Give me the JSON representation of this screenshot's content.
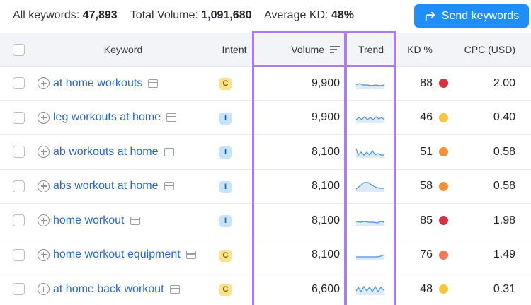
{
  "summary": {
    "all_keywords_label": "All keywords:",
    "all_keywords_value": "47,893",
    "total_volume_label": "Total Volume:",
    "total_volume_value": "1,091,680",
    "avg_kd_label": "Average KD:",
    "avg_kd_value": "48%"
  },
  "send_button": {
    "label": "Send keywords",
    "icon": "share-arrow-icon",
    "color": "#1f8efa"
  },
  "columns": {
    "keyword": "Keyword",
    "intent": "Intent",
    "volume": "Volume",
    "trend": "Trend",
    "kd": "KD %",
    "cpc": "CPC (USD)"
  },
  "highlight_color": "#a87fe8",
  "kd_colors": {
    "very_hard": "#d6303e",
    "hard": "#f07a5b",
    "difficult": "#f0913c",
    "possible": "#f5c640"
  },
  "rows": [
    {
      "keyword": "at home workouts",
      "intent": "C",
      "volume": "9,900",
      "trend": "flat-slight",
      "kd": "88",
      "kd_color": "#d6303e",
      "cpc": "2.00"
    },
    {
      "keyword": "leg workouts at home",
      "intent": "I",
      "volume": "9,900",
      "trend": "wavy",
      "kd": "46",
      "kd_color": "#f5c640",
      "cpc": "0.40"
    },
    {
      "keyword": "ab workouts at home",
      "intent": "I",
      "volume": "8,100",
      "trend": "spiky-down",
      "kd": "51",
      "kd_color": "#f0913c",
      "cpc": "0.58"
    },
    {
      "keyword": "abs workout at home",
      "intent": "I",
      "volume": "8,100",
      "trend": "hill",
      "kd": "58",
      "kd_color": "#f0913c",
      "cpc": "0.58"
    },
    {
      "keyword": "home workout",
      "intent": "I",
      "volume": "8,100",
      "trend": "flat-dip",
      "kd": "85",
      "kd_color": "#d6303e",
      "cpc": "1.98"
    },
    {
      "keyword": "home workout equipment",
      "intent": "C",
      "volume": "8,100",
      "trend": "flat-rise",
      "kd": "76",
      "kd_color": "#f07a5b",
      "cpc": "1.49"
    },
    {
      "keyword": "at home back workout",
      "intent": "C",
      "volume": "6,600",
      "trend": "zigzag",
      "kd": "48",
      "kd_color": "#f5c640",
      "cpc": "0.31"
    }
  ]
}
